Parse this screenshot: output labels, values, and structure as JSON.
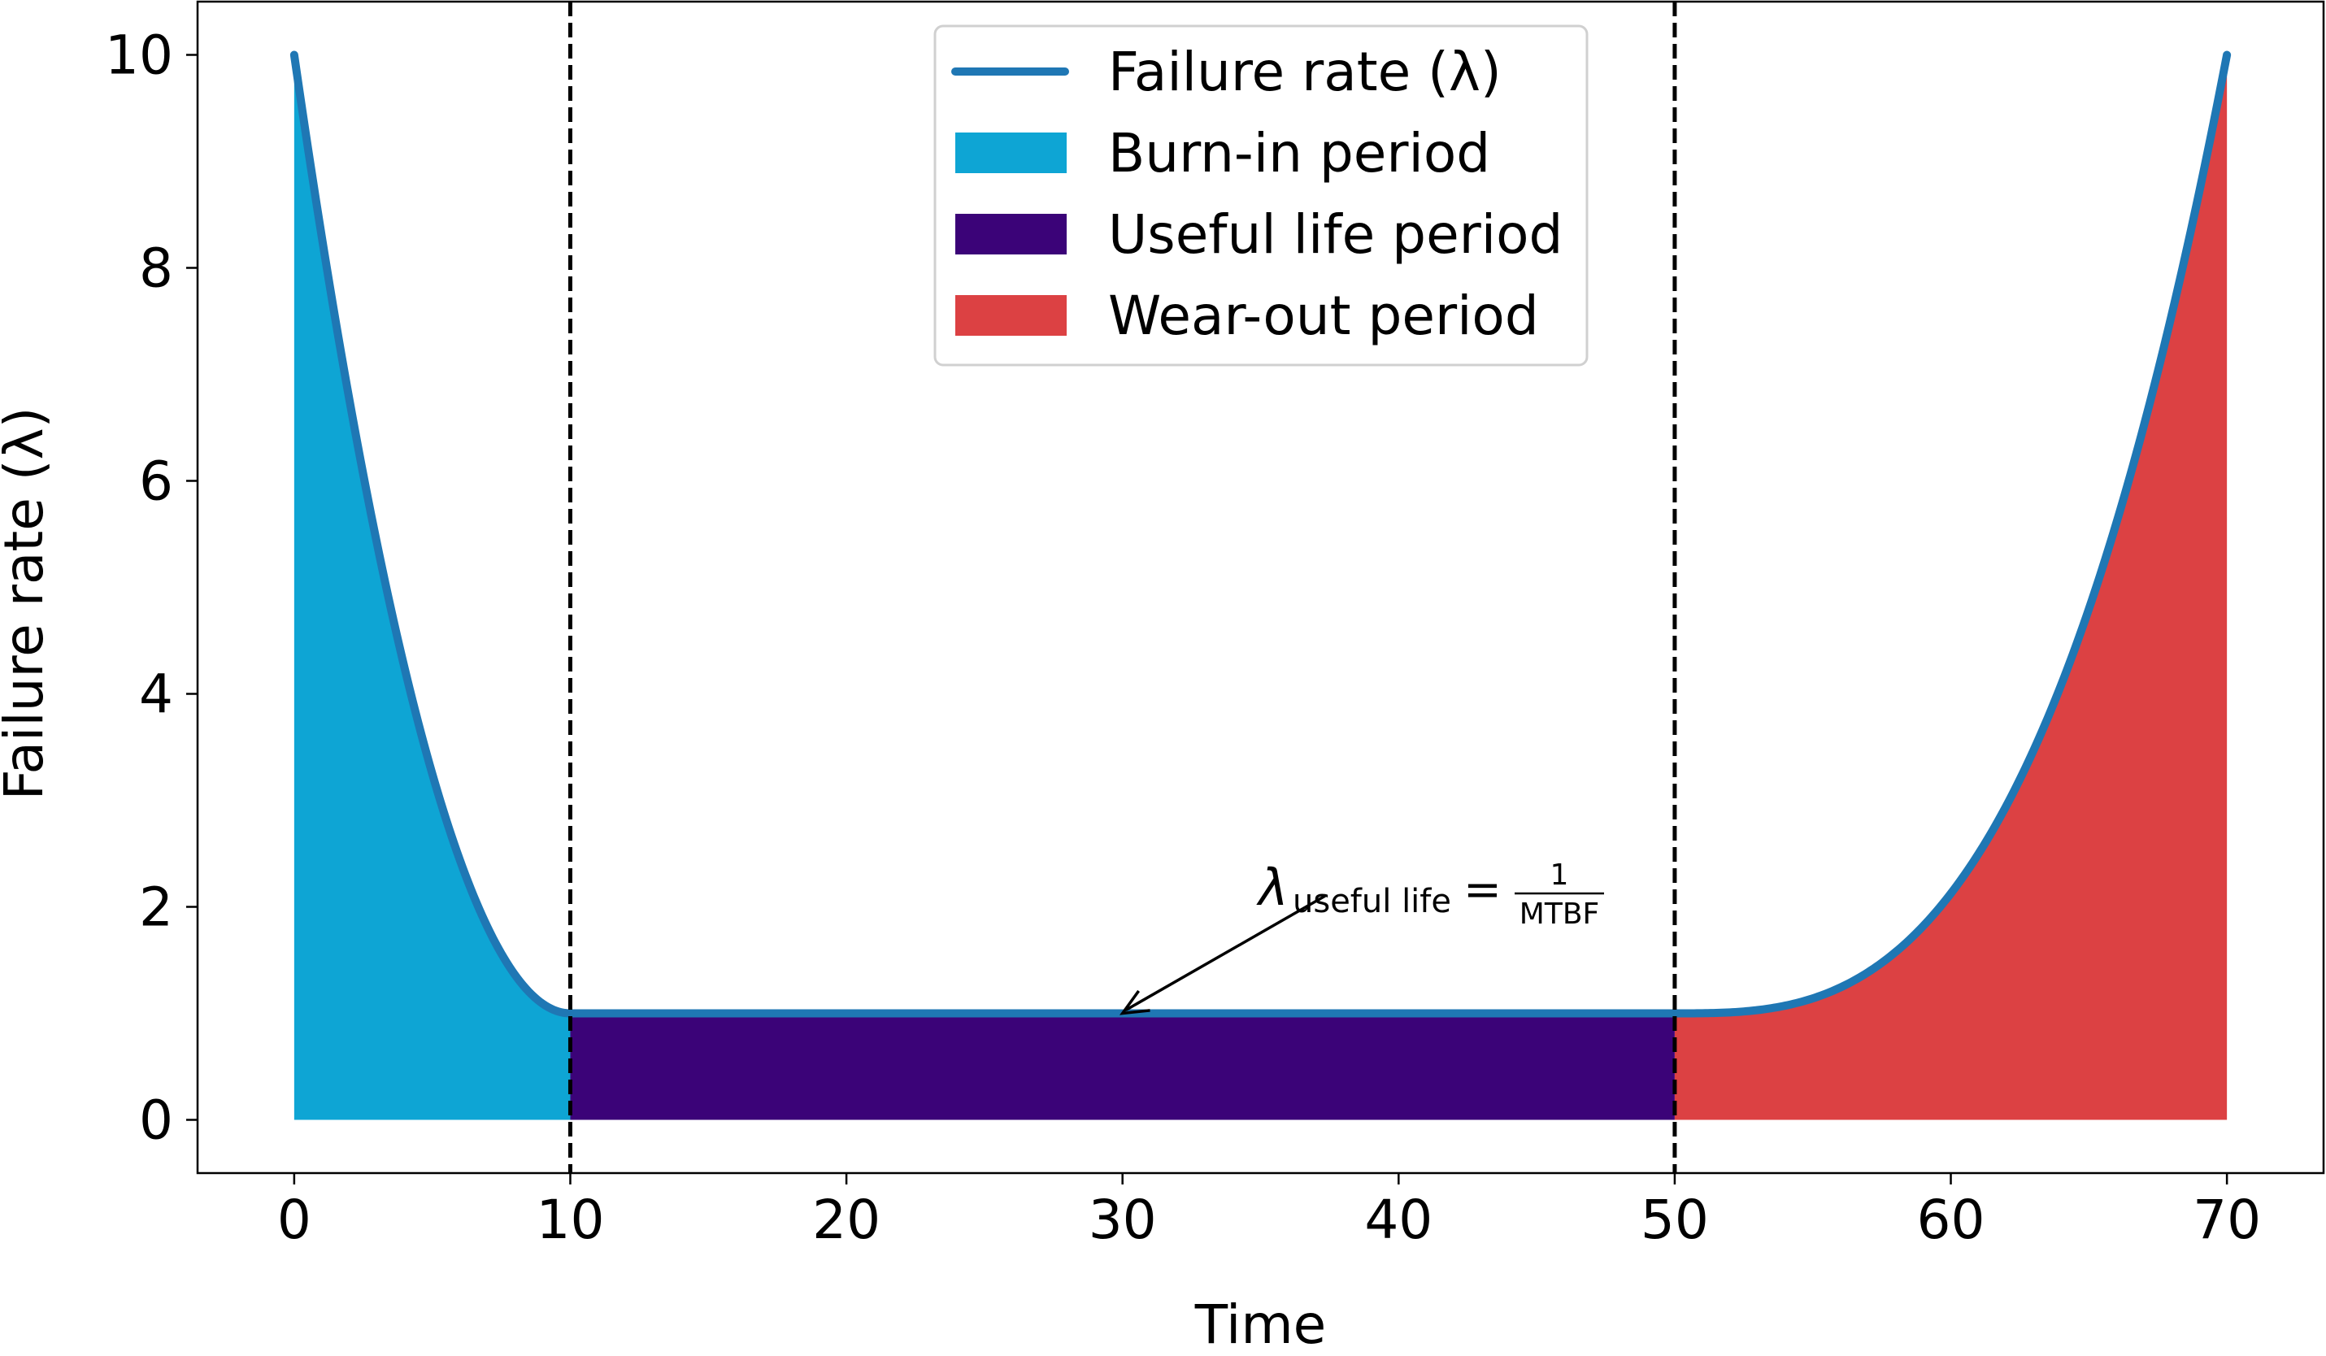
{
  "chart_data": {
    "type": "area",
    "xlabel": "Time",
    "ylabel": "Failure rate (λ)",
    "xlim": [
      -3.5,
      73.5
    ],
    "ylim": [
      -0.5,
      10.5
    ],
    "xticks": [
      0,
      10,
      20,
      30,
      40,
      50,
      60,
      70
    ],
    "yticks": [
      0,
      2,
      4,
      6,
      8,
      10
    ],
    "grid": false,
    "legend_position": "top-center",
    "vlines": [
      10,
      50
    ],
    "series": [
      {
        "name": "Failure rate (λ)",
        "kind": "line",
        "color": "#1f77b4",
        "x": [
          0,
          1,
          2,
          3,
          4,
          5,
          6,
          7,
          8,
          9,
          10,
          15,
          20,
          25,
          30,
          35,
          40,
          45,
          50,
          52,
          54,
          56,
          58,
          60,
          62,
          64,
          66,
          68,
          70
        ],
        "y": [
          10.0,
          8.29,
          6.76,
          5.41,
          4.24,
          3.25,
          2.44,
          1.81,
          1.36,
          1.09,
          1.0,
          1.0,
          1.0,
          1.0,
          1.0,
          1.0,
          1.0,
          1.0,
          1.0,
          1.04,
          1.22,
          1.58,
          2.15,
          3.0,
          4.16,
          5.67,
          7.58,
          9.93,
          10.0
        ]
      },
      {
        "name": "Burn-in period",
        "kind": "fill",
        "color": "#0ea5d4",
        "x_range": [
          0,
          10
        ]
      },
      {
        "name": "Useful life period",
        "kind": "fill",
        "color": "#3b0378",
        "x_range": [
          10,
          50
        ]
      },
      {
        "name": "Wear-out period",
        "kind": "fill",
        "color": "#dc4143",
        "x_range": [
          50,
          70
        ]
      }
    ],
    "annotation": {
      "symbol": "λ",
      "subscript": "useful life",
      "equals": "=",
      "numerator": "1",
      "denominator": "MTBF",
      "arrow_target": [
        30,
        1.0
      ]
    }
  }
}
